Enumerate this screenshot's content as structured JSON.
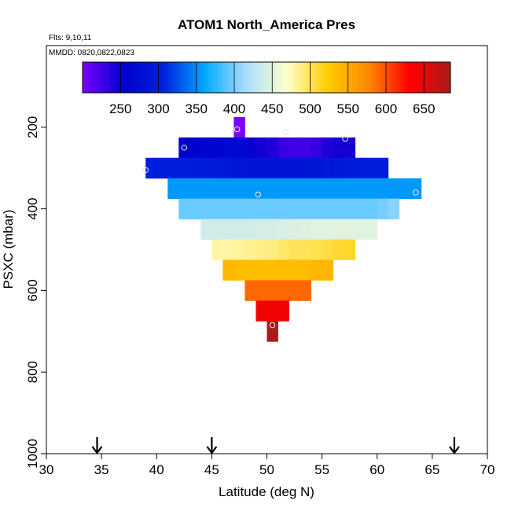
{
  "chart_data": {
    "type": "heatmap",
    "title": "ATOM1 North_America Pres",
    "annotations": [
      "Flts: 9,10,11",
      "MMDD: 0820,0822,0823"
    ],
    "xlabel": "Latitude (deg N)",
    "ylabel": "PSXC (mbar)",
    "xlim": [
      30,
      70
    ],
    "ylim": [
      1000,
      0
    ],
    "x_ticks": [
      30,
      35,
      40,
      45,
      50,
      55,
      60,
      65,
      70
    ],
    "y_ticks": [
      200,
      400,
      600,
      800,
      1000
    ],
    "colorbar": {
      "range": [
        200,
        685
      ],
      "ticks": [
        250,
        300,
        350,
        400,
        450,
        500,
        550,
        600,
        650
      ],
      "palette": [
        "#7b00ff",
        "#0000cc",
        "#0022dd",
        "#00aaff",
        "#aaddff",
        "#ffffcc",
        "#ffcc00",
        "#ff8800",
        "#ff0000",
        "#aa1a1a"
      ]
    },
    "cell_width_deg": 1,
    "cell_height_mbar": 50,
    "rows": [
      {
        "pressure": 200,
        "lat_min": 47,
        "lat_max": 48,
        "values": [
          200
        ]
      },
      {
        "pressure": 250,
        "lat_min": 42,
        "lat_max": 58,
        "values": [
          255,
          255,
          260,
          262,
          265,
          265,
          250,
          245,
          240,
          230,
          225,
          225,
          230,
          240,
          245,
          245
        ]
      },
      {
        "pressure": 300,
        "lat_min": 39,
        "lat_max": 61,
        "values": [
          300,
          300,
          300,
          300,
          298,
          295,
          292,
          290,
          288,
          286,
          285,
          285,
          285,
          286,
          288,
          288,
          290,
          292,
          295,
          298,
          300,
          300
        ]
      },
      {
        "pressure": 350,
        "lat_min": 41,
        "lat_max": 64,
        "values": [
          355,
          355,
          355,
          355,
          355,
          355,
          355,
          355,
          355,
          355,
          355,
          355,
          355,
          355,
          355,
          355,
          355,
          355,
          355,
          355,
          355,
          355,
          355
        ]
      },
      {
        "pressure": 400,
        "lat_min": 42,
        "lat_max": 62,
        "values": [
          395,
          395,
          395,
          395,
          395,
          395,
          395,
          395,
          395,
          395,
          395,
          395,
          395,
          395,
          395,
          395,
          395,
          395,
          400,
          405
        ]
      },
      {
        "pressure": 450,
        "lat_min": 44,
        "lat_max": 60,
        "values": [
          440,
          440,
          440,
          440,
          440,
          442,
          442,
          444,
          446,
          448,
          450,
          450,
          450,
          450,
          450,
          450
        ]
      },
      {
        "pressure": 500,
        "lat_min": 45,
        "lat_max": 58,
        "values": [
          480,
          480,
          482,
          485,
          488,
          490,
          495,
          500,
          500,
          502,
          505,
          510,
          512
        ]
      },
      {
        "pressure": 550,
        "lat_min": 46,
        "lat_max": 56,
        "values": [
          540,
          535,
          535,
          535,
          535,
          535,
          535,
          535,
          540,
          540
        ]
      },
      {
        "pressure": 600,
        "lat_min": 48,
        "lat_max": 54,
        "values": [
          590,
          590,
          590,
          590,
          590,
          590
        ]
      },
      {
        "pressure": 650,
        "lat_min": 49,
        "lat_max": 52,
        "values": [
          640,
          640,
          640
        ]
      },
      {
        "pressure": 700,
        "lat_min": 50,
        "lat_max": 51,
        "values": [
          685
        ]
      }
    ],
    "sample_points": [
      {
        "lat": 47.3,
        "pressure": 205
      },
      {
        "lat": 51.7,
        "pressure": 212
      },
      {
        "lat": 57.1,
        "pressure": 228
      },
      {
        "lat": 42.5,
        "pressure": 250
      },
      {
        "lat": 39.0,
        "pressure": 305
      },
      {
        "lat": 49.2,
        "pressure": 365
      },
      {
        "lat": 63.5,
        "pressure": 360
      },
      {
        "lat": 45.4,
        "pressure": 465
      },
      {
        "lat": 50.5,
        "pressure": 685
      }
    ],
    "flight_markers_lat": [
      34.6,
      45.0,
      67.0
    ]
  }
}
